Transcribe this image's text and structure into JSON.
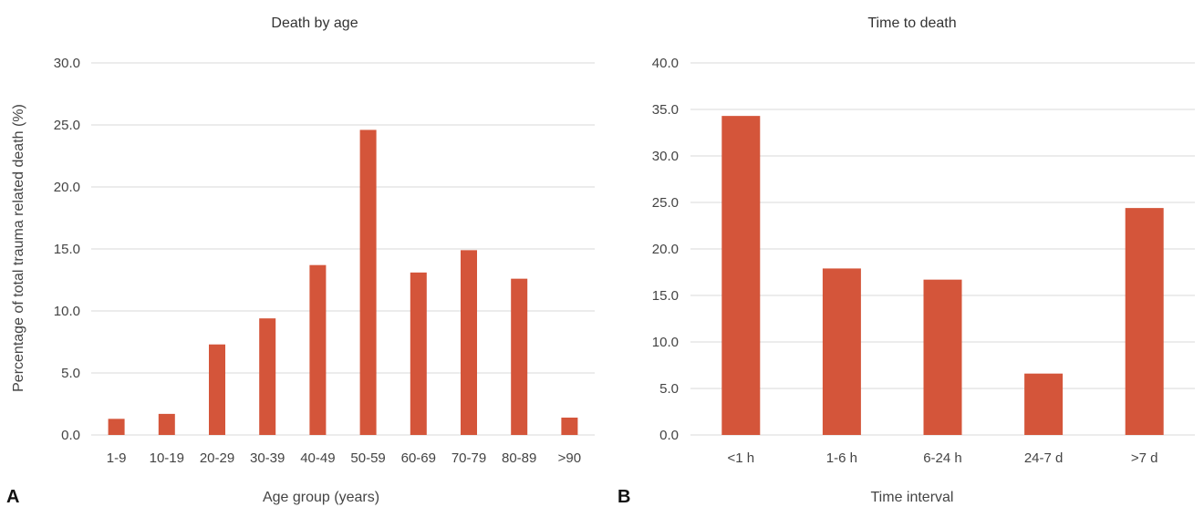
{
  "chart_data": [
    {
      "panel_label": "A",
      "type": "bar",
      "title": "Death by age",
      "xlabel": "Age group (years)",
      "ylabel": "Percentage of total trauma related death (%)",
      "ylim": [
        0,
        30
      ],
      "yticks": [
        "0.0",
        "5.0",
        "10.0",
        "15.0",
        "20.0",
        "25.0",
        "30.0"
      ],
      "grid": true,
      "categories": [
        "1-9",
        "10-19",
        "20-29",
        "30-39",
        "40-49",
        "50-59",
        "60-69",
        "70-79",
        "80-89",
        ">90"
      ],
      "values": [
        1.3,
        1.7,
        7.3,
        9.4,
        13.7,
        24.6,
        13.1,
        14.9,
        12.6,
        1.4
      ],
      "bar_color": "#d4553a"
    },
    {
      "panel_label": "B",
      "type": "bar",
      "title": "Time to death",
      "xlabel": "Time interval",
      "ylabel": "",
      "ylim": [
        0,
        40
      ],
      "yticks": [
        "0.0",
        "5.0",
        "10.0",
        "15.0",
        "20.0",
        "25.0",
        "30.0",
        "35.0",
        "40.0"
      ],
      "grid": true,
      "categories": [
        "<1 h",
        "1-6 h",
        "6-24 h",
        "24-7 d",
        ">7 d"
      ],
      "values": [
        34.3,
        17.9,
        16.7,
        6.6,
        24.4
      ],
      "bar_color": "#d4553a"
    }
  ]
}
